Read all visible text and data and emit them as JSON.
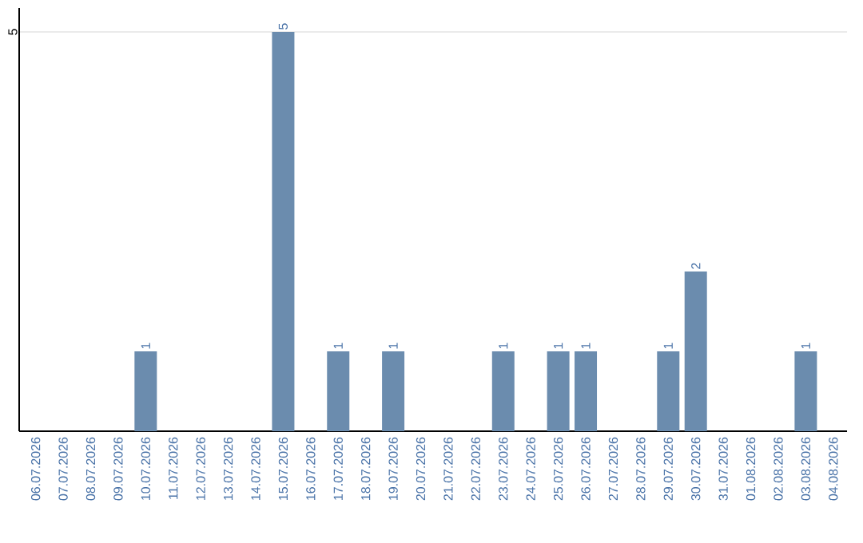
{
  "chart_data": {
    "type": "bar",
    "categories": [
      "06.07.2026",
      "07.07.2026",
      "08.07.2026",
      "09.07.2026",
      "10.07.2026",
      "11.07.2026",
      "12.07.2026",
      "13.07.2026",
      "14.07.2026",
      "15.07.2026",
      "16.07.2026",
      "17.07.2026",
      "18.07.2026",
      "19.07.2026",
      "20.07.2026",
      "21.07.2026",
      "22.07.2026",
      "23.07.2026",
      "24.07.2026",
      "25.07.2026",
      "26.07.2026",
      "27.07.2026",
      "28.07.2026",
      "29.07.2026",
      "30.07.2026",
      "31.07.2026",
      "01.08.2026",
      "02.08.2026",
      "03.08.2026",
      "04.08.2026"
    ],
    "values": [
      null,
      null,
      null,
      null,
      1,
      null,
      null,
      null,
      null,
      5,
      null,
      1,
      null,
      1,
      null,
      null,
      null,
      1,
      null,
      1,
      1,
      null,
      null,
      1,
      2,
      null,
      null,
      null,
      1,
      null
    ],
    "color": "#6b8cae",
    "ylim": [
      0,
      5.3
    ],
    "yticks": [
      5
    ],
    "grid": "y",
    "data_labels": true
  }
}
